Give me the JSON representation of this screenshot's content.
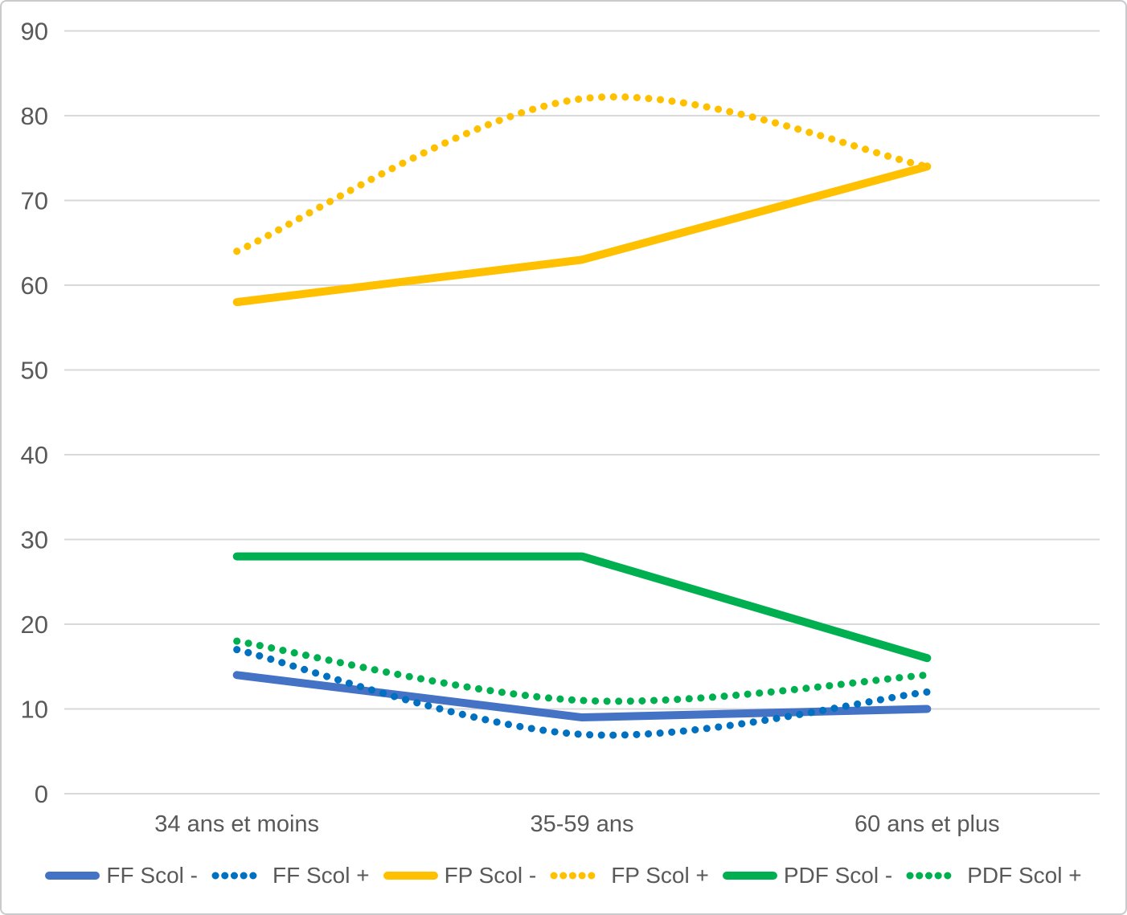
{
  "chart_data": {
    "type": "line",
    "title": "",
    "xlabel": "",
    "ylabel": "",
    "categories": [
      "34 ans et moins",
      "35-59 ans",
      "60 ans et plus"
    ],
    "series": [
      {
        "name": "FF Scol -",
        "values": [
          14,
          9,
          10
        ],
        "color": "#4472C4",
        "dash": "solid"
      },
      {
        "name": "FF Scol +",
        "values": [
          17,
          7,
          12
        ],
        "color": "#0070C0",
        "dash": "dotted"
      },
      {
        "name": "FP Scol -",
        "values": [
          58,
          63,
          74
        ],
        "color": "#FFC000",
        "dash": "solid"
      },
      {
        "name": "FP Scol +",
        "values": [
          64,
          82,
          74
        ],
        "color": "#FFC000",
        "dash": "dotted"
      },
      {
        "name": "PDF Scol -",
        "values": [
          28,
          28,
          16
        ],
        "color": "#00B050",
        "dash": "solid"
      },
      {
        "name": "PDF Scol +",
        "values": [
          18,
          11,
          14
        ],
        "color": "#00B050",
        "dash": "dotted"
      }
    ],
    "ylim": [
      0,
      90
    ],
    "ytick_step": 10,
    "grid": true,
    "legend_position": "bottom"
  },
  "style": {
    "text_color": "#595959",
    "grid_color": "#D9D9D9",
    "background": "#FFFFFF",
    "border_color": "#C9CACB"
  }
}
